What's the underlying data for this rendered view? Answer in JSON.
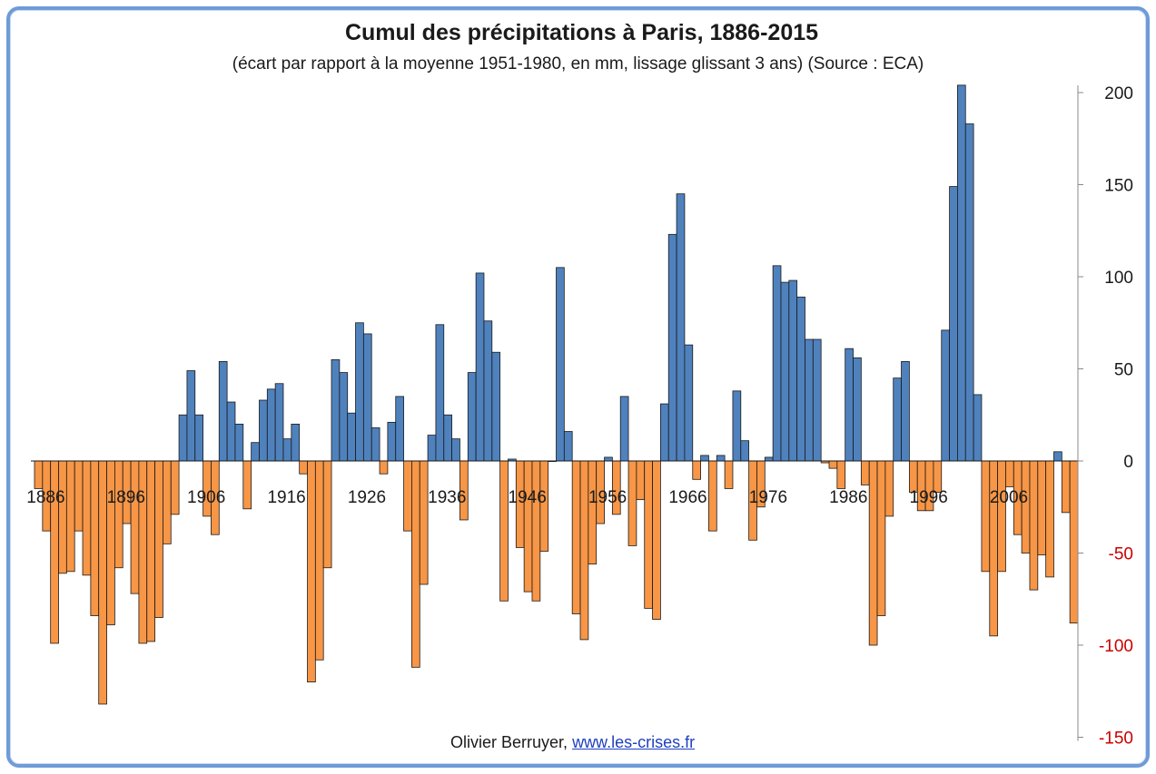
{
  "chart_data": {
    "type": "bar",
    "title": "Cumul des précipitations à Paris, 1886-2015",
    "subtitle": "(écart par rapport à la moyenne 1951-1980, en mm, lissage glissant 3 ans) (Source : ECA)",
    "xlabel": "",
    "ylabel": "",
    "ylim": [
      -150,
      200
    ],
    "y_ticks": [
      200,
      150,
      100,
      50,
      0,
      -50,
      -100,
      -150
    ],
    "x_tick_labels": [
      "1886",
      "1896",
      "1906",
      "1916",
      "1926",
      "1936",
      "1946",
      "1956",
      "1966",
      "1976",
      "1986",
      "1996",
      "2006"
    ],
    "x_start_year": 1886,
    "x_end_year": 2015,
    "grid": false,
    "legend": "none",
    "colors": {
      "positive": "#4f81bd",
      "negative": "#f79646",
      "bar_edge": "#1a1a1a",
      "negative_tick_label": "#cc0000",
      "positive_tick_label": "#1a1a1a",
      "frame": "#6f9bd8"
    },
    "years": [
      1886,
      1887,
      1888,
      1889,
      1890,
      1891,
      1892,
      1893,
      1894,
      1895,
      1896,
      1897,
      1898,
      1899,
      1900,
      1901,
      1902,
      1903,
      1904,
      1905,
      1906,
      1907,
      1908,
      1909,
      1910,
      1911,
      1912,
      1913,
      1914,
      1915,
      1916,
      1917,
      1918,
      1919,
      1920,
      1921,
      1922,
      1923,
      1924,
      1925,
      1926,
      1927,
      1928,
      1929,
      1930,
      1931,
      1932,
      1933,
      1934,
      1935,
      1936,
      1937,
      1938,
      1939,
      1940,
      1941,
      1942,
      1943,
      1944,
      1945,
      1946,
      1947,
      1948,
      1949,
      1950,
      1951,
      1952,
      1953,
      1954,
      1955,
      1956,
      1957,
      1958,
      1959,
      1960,
      1961,
      1962,
      1963,
      1964,
      1965,
      1966,
      1967,
      1968,
      1969,
      1970,
      1971,
      1972,
      1973,
      1974,
      1975,
      1976,
      1977,
      1978,
      1979,
      1980,
      1981,
      1982,
      1983,
      1984,
      1985,
      1986,
      1987,
      1988,
      1989,
      1990,
      1991,
      1992,
      1993,
      1994,
      1995,
      1996,
      1997,
      1998,
      1999,
      2000,
      2001,
      2002,
      2003,
      2004,
      2005,
      2006,
      2007,
      2008,
      2009,
      2010,
      2011,
      2012,
      2013,
      2014,
      2015
    ],
    "values": [
      -15,
      -38,
      -99,
      -61,
      -60,
      -38,
      -62,
      -84,
      -132,
      -89,
      -58,
      -34,
      -72,
      -99,
      -98,
      -85,
      -45,
      -29,
      25,
      49,
      25,
      -30,
      -40,
      54,
      32,
      20,
      -26,
      10,
      33,
      39,
      42,
      12,
      20,
      -7,
      -120,
      -108,
      -58,
      55,
      48,
      26,
      75,
      69,
      18,
      -7,
      21,
      35,
      -38,
      -112,
      -67,
      14,
      74,
      25,
      12,
      -32,
      48,
      102,
      76,
      59,
      -76,
      1,
      -47,
      -71,
      -76,
      -49,
      0,
      105,
      16,
      -83,
      -97,
      -56,
      -34,
      2,
      -29,
      35,
      -46,
      -21,
      -80,
      -86,
      31,
      123,
      145,
      63,
      -10,
      3,
      -38,
      3,
      -15,
      38,
      11,
      -43,
      -25,
      2,
      106,
      97,
      98,
      89,
      66,
      66,
      -1,
      -4,
      -15,
      61,
      56,
      -13,
      -100,
      -84,
      -30,
      45,
      54,
      -17,
      -27,
      -27,
      -17,
      71,
      149,
      204,
      183,
      36,
      -60,
      -95,
      -60,
      -14,
      -40,
      -50,
      -70,
      -51,
      -63,
      5,
      -28,
      -88
    ]
  },
  "footer": {
    "author": "Olivier Berruyer,",
    "link": "www.les-crises.fr"
  }
}
